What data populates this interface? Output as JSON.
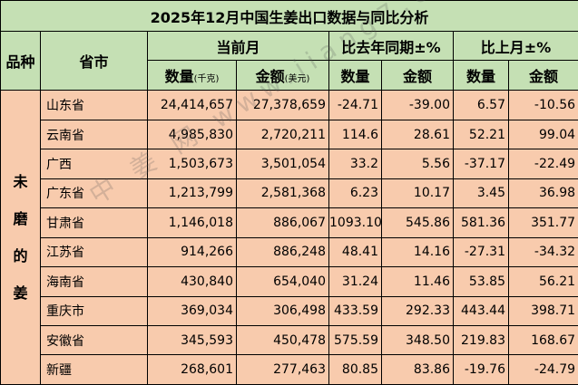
{
  "title": "2025年12月中国生姜出口数据与同比分析",
  "headers": {
    "pinzhong": "品种",
    "province": "省市",
    "current_month": "当前月",
    "yoy": "比去年同期±%",
    "mom": "比上月±%",
    "qty": "数量",
    "qty_unit": "(千克)",
    "amt": "金额",
    "amt_unit": "(美元)"
  },
  "category": [
    "未",
    "磨",
    "的",
    "姜"
  ],
  "rows": [
    {
      "province": "山东省",
      "qty": "24,414,657",
      "amt": "27,378,659",
      "yoy_qty": "-24.71",
      "yoy_amt": "-39.00",
      "mom_qty": "6.57",
      "mom_amt": "-10.56"
    },
    {
      "province": "云南省",
      "qty": "4,985,830",
      "amt": "2,720,211",
      "yoy_qty": "114.6",
      "yoy_amt": "28.61",
      "mom_qty": "52.21",
      "mom_amt": "99.04"
    },
    {
      "province": "广西",
      "qty": "1,503,673",
      "amt": "3,501,054",
      "yoy_qty": "33.2",
      "yoy_amt": "5.56",
      "mom_qty": "-37.17",
      "mom_amt": "-22.49"
    },
    {
      "province": "广东省",
      "qty": "1,213,799",
      "amt": "2,581,368",
      "yoy_qty": "6.23",
      "yoy_amt": "10.17",
      "mom_qty": "3.45",
      "mom_amt": "36.98"
    },
    {
      "province": "甘肃省",
      "qty": "1,146,018",
      "amt": "886,067",
      "yoy_qty": "1093.10",
      "yoy_amt": "545.86",
      "mom_qty": "581.36",
      "mom_amt": "351.77"
    },
    {
      "province": "江苏省",
      "qty": "914,266",
      "amt": "886,248",
      "yoy_qty": "48.41",
      "yoy_amt": "14.16",
      "mom_qty": "-27.31",
      "mom_amt": "-34.32"
    },
    {
      "province": "海南省",
      "qty": "430,840",
      "amt": "654,040",
      "yoy_qty": "31.24",
      "yoy_amt": "11.46",
      "mom_qty": "53.85",
      "mom_amt": "56.21"
    },
    {
      "province": "重庆市",
      "qty": "369,034",
      "amt": "306,498",
      "yoy_qty": "433.59",
      "yoy_amt": "292.33",
      "mom_qty": "443.44",
      "mom_amt": "398.71"
    },
    {
      "province": "安徽省",
      "qty": "345,593",
      "amt": "450,478",
      "yoy_qty": "575.59",
      "yoy_amt": "348.50",
      "mom_qty": "219.83",
      "mom_amt": "168.67"
    },
    {
      "province": "新疆",
      "qty": "268,601",
      "amt": "277,463",
      "yoy_qty": "80.85",
      "yoy_amt": "83.86",
      "mom_qty": "-19.76",
      "mom_amt": "-24.79"
    }
  ],
  "watermark": "中 姜 网 www.jiang7.com"
}
